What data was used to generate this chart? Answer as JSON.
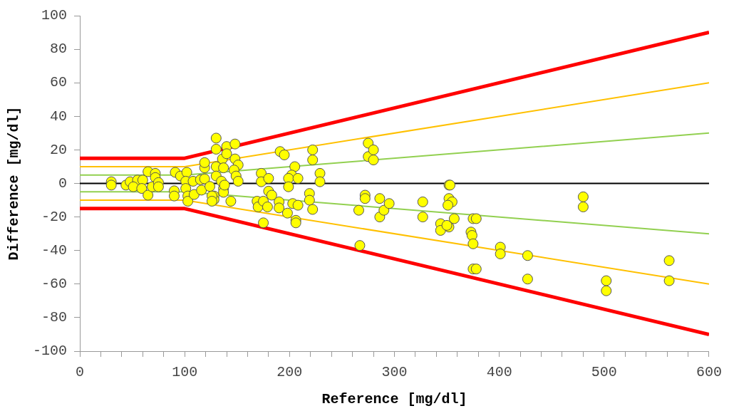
{
  "chart_data": {
    "type": "scatter",
    "xlabel": "Reference [mg/dl]",
    "ylabel": "Difference [mg/dl]",
    "xlim": [
      0,
      600
    ],
    "ylim": [
      -100,
      100
    ],
    "xticks": [
      0,
      {
        "value": 20,
        "label": null
      },
      {
        "value": 40,
        "label": null
      },
      {
        "value": 60,
        "label": null
      },
      {
        "value": 80,
        "label": null
      },
      100,
      {
        "value": 120,
        "label": null
      },
      {
        "value": 140,
        "label": null
      },
      {
        "value": 160,
        "label": null
      },
      {
        "value": 180,
        "label": null
      },
      200,
      {
        "value": 220,
        "label": null
      },
      {
        "value": 240,
        "label": null
      },
      {
        "value": 260,
        "label": null
      },
      {
        "value": 280,
        "label": null
      },
      300,
      {
        "value": 320,
        "label": null
      },
      {
        "value": 340,
        "label": null
      },
      {
        "value": 360,
        "label": null
      },
      {
        "value": 380,
        "label": null
      },
      400,
      {
        "value": 420,
        "label": null
      },
      {
        "value": 440,
        "label": null
      },
      {
        "value": 460,
        "label": null
      },
      {
        "value": 480,
        "label": null
      },
      500,
      {
        "value": 520,
        "label": null
      },
      {
        "value": 540,
        "label": null
      },
      {
        "value": 560,
        "label": null
      },
      {
        "value": 580,
        "label": null
      },
      600
    ],
    "yticks": [
      -100,
      -80,
      -60,
      -40,
      -20,
      0,
      20,
      40,
      60,
      80,
      100
    ],
    "grid": false,
    "legend": false,
    "ref_lines": [
      {
        "axis": "y",
        "value": 0,
        "color": "#000000"
      }
    ],
    "series": [
      {
        "type": "line",
        "color": "#ff0000",
        "marker": "none",
        "x": [
          0,
          100,
          600
        ],
        "values": [
          15,
          15,
          90
        ]
      },
      {
        "type": "line",
        "color": "#ff0000",
        "marker": "none",
        "x": [
          0,
          100,
          600
        ],
        "values": [
          -15,
          -15,
          -90
        ]
      },
      {
        "type": "line",
        "color": "#ffc000",
        "marker": "none",
        "x": [
          0,
          100,
          600
        ],
        "values": [
          10,
          10,
          60
        ]
      },
      {
        "type": "line",
        "color": "#ffc000",
        "marker": "none",
        "x": [
          0,
          100,
          600
        ],
        "values": [
          -10,
          -10,
          -60
        ]
      },
      {
        "type": "line",
        "color": "#92d050",
        "marker": "none",
        "x": [
          0,
          100,
          600
        ],
        "values": [
          5,
          5,
          30
        ]
      },
      {
        "type": "line",
        "color": "#92d050",
        "marker": "none",
        "x": [
          0,
          100,
          600
        ],
        "values": [
          -5,
          -5,
          -30
        ]
      },
      {
        "type": "scatter",
        "color": "#ffff00",
        "marker": "circle",
        "x": [
          30,
          30,
          44,
          48,
          55,
          51,
          60,
          59,
          65,
          65,
          72,
          72,
          69,
          75,
          75,
          91,
          90,
          90,
          96,
          102,
          101,
          101,
          103,
          103,
          108,
          109,
          115,
          116,
          119,
          119,
          119,
          124,
          128,
          128,
          130,
          130,
          130,
          130,
          136,
          137,
          135,
          137,
          137,
          140,
          140,
          148,
          148,
          151,
          147,
          149,
          151,
          144,
          138,
          126,
          126,
          173,
          173,
          180,
          191,
          195,
          222,
          222,
          205,
          202,
          199,
          208,
          199,
          229,
          229,
          180,
          183,
          169,
          170,
          175,
          179,
          190,
          190,
          198,
          203,
          208,
          206,
          206,
          219,
          219,
          222,
          175,
          267,
          266,
          272,
          272,
          275,
          275,
          280,
          280,
          286,
          286,
          290,
          295,
          327,
          327,
          344,
          344,
          352,
          350,
          352,
          353,
          352,
          355,
          351,
          357,
          375,
          378,
          373,
          374,
          375,
          375,
          378,
          401,
          401,
          427,
          427,
          480,
          480,
          502,
          502,
          562,
          562
        ],
        "values": [
          1,
          -1,
          -1,
          1,
          2,
          -2,
          2,
          -3,
          7,
          -7,
          6,
          3.5,
          -2,
          0.5,
          -2,
          6.6,
          -4.4,
          -7.5,
          4.4,
          6.6,
          1.3,
          -3,
          -7.5,
          -10.6,
          1.3,
          -6.6,
          2.2,
          -4,
          2.7,
          9.3,
          12.4,
          -1.8,
          -7.5,
          -9.7,
          27,
          20.4,
          10,
          4.4,
          14.6,
          9.3,
          1.3,
          -3,
          -5.3,
          22,
          17.7,
          23.5,
          14.6,
          11,
          8,
          4.4,
          1.3,
          -10.6,
          -1,
          -7.5,
          -10.6,
          6,
          1,
          3,
          19,
          17,
          20,
          14,
          10,
          5,
          3,
          3,
          -2,
          6,
          1,
          -4.6,
          -7,
          -10.6,
          -14,
          -10.6,
          -14,
          -11,
          -14.6,
          -17.7,
          -12,
          -13,
          -22,
          -23.5,
          -6,
          -10,
          -15.5,
          -23.5,
          -37,
          -16,
          -7,
          -9,
          24,
          16,
          20,
          14,
          -9,
          -20,
          -16,
          -12,
          -11,
          -20,
          -24,
          -28,
          -26,
          -25,
          -1,
          -1,
          -9,
          -11,
          -13,
          -21,
          -21,
          -21,
          -29,
          -31,
          -36,
          -51,
          -51,
          -38,
          -42,
          -43,
          -57,
          -8,
          -14,
          -58,
          -64,
          -46,
          -58
        ]
      }
    ]
  }
}
